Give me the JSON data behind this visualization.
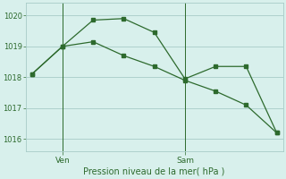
{
  "line1_x": [
    0,
    1,
    2,
    3,
    4,
    5,
    6,
    7,
    8
  ],
  "line1_y": [
    1018.1,
    1019.0,
    1019.85,
    1019.9,
    1019.45,
    1017.95,
    1018.35,
    1018.35,
    1016.2
  ],
  "line2_x": [
    0,
    1,
    2,
    3,
    4,
    5,
    6,
    7,
    8
  ],
  "line2_y": [
    1018.1,
    1019.0,
    1019.15,
    1018.7,
    1018.35,
    1017.9,
    1017.55,
    1017.1,
    1016.2
  ],
  "line_color": "#2d6a2d",
  "bg_color": "#d8f0ec",
  "grid_color": "#a8ccc8",
  "xlabel": "Pression niveau de la mer( hPa )",
  "ylim": [
    1015.6,
    1020.4
  ],
  "yticks": [
    1016,
    1017,
    1018,
    1019,
    1020
  ],
  "xlim": [
    -0.2,
    8.2
  ],
  "ven_x": 1,
  "sam_x": 5,
  "ven_label": "Ven",
  "sam_label": "Sam"
}
